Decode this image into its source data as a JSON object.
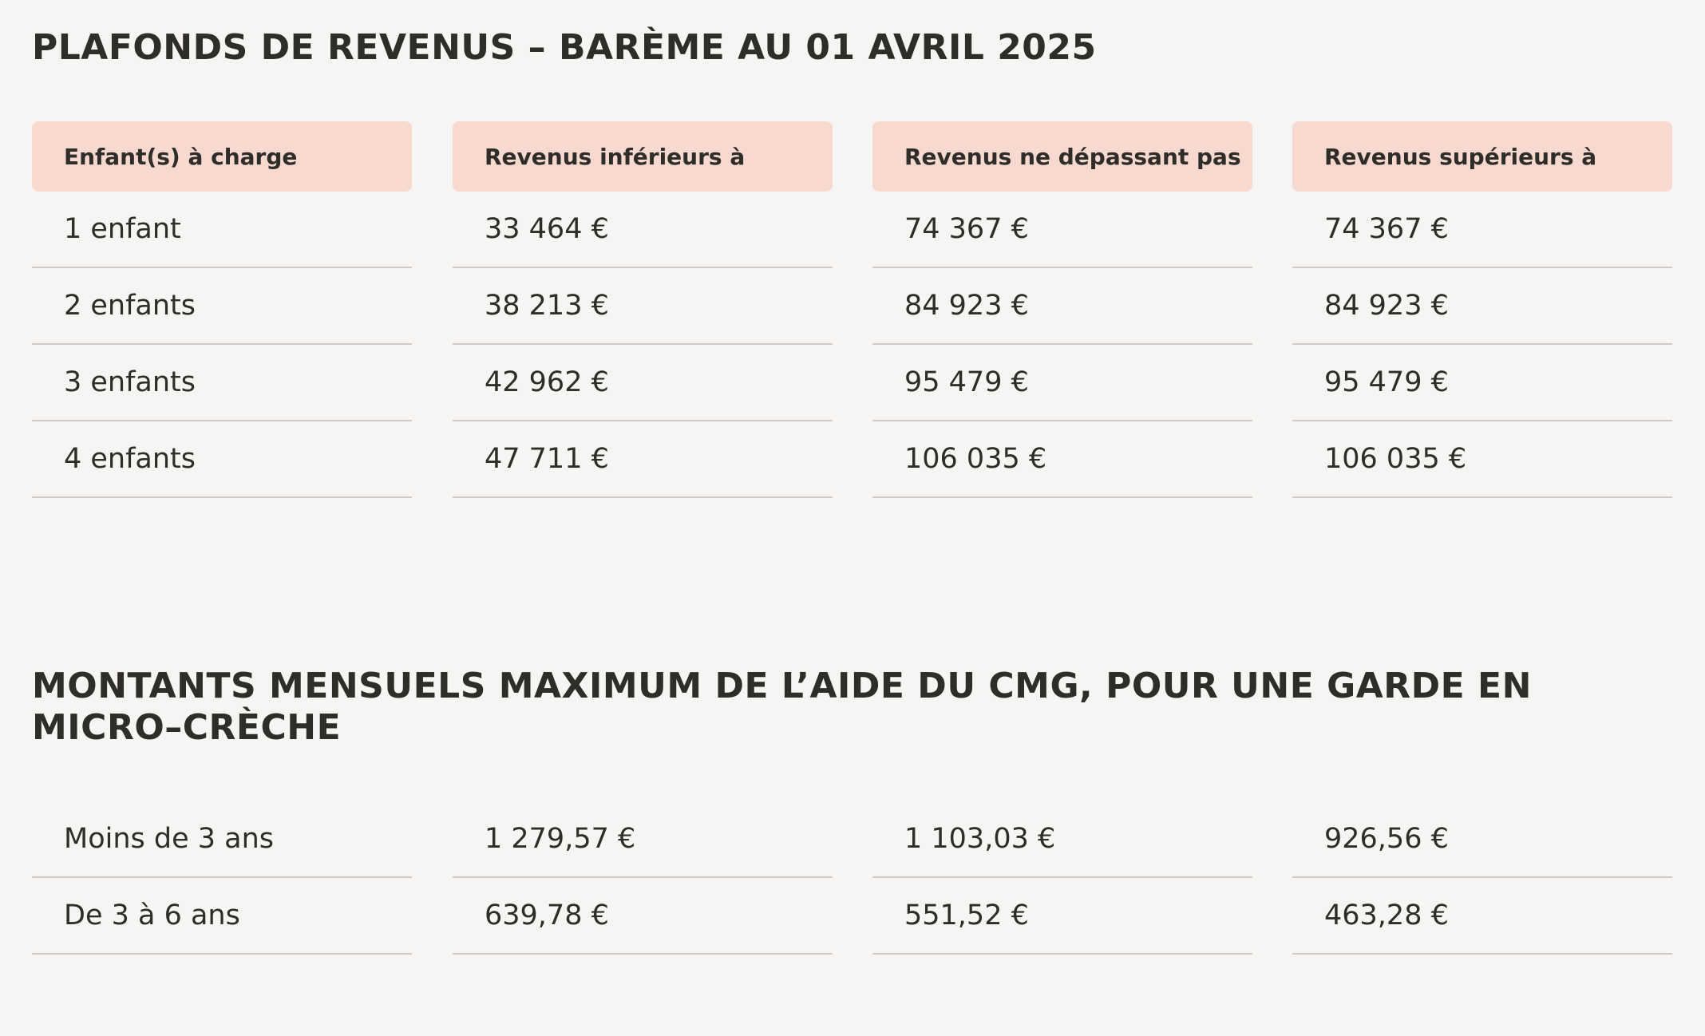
{
  "section1": {
    "title": "PLAFONDS DE REVENUS – BARÈME AU 01 AVRIL 2025",
    "headers": [
      "Enfant(s) à charge",
      "Revenus inférieurs à",
      "Revenus ne dépassant pas",
      "Revenus supérieurs à"
    ],
    "rows": [
      [
        "1 enfant",
        "33 464 €",
        "74 367 €",
        "74 367 €"
      ],
      [
        "2 enfants",
        "38 213 €",
        "84 923 €",
        "84 923 €"
      ],
      [
        "3 enfants",
        "42 962 €",
        "95 479 €",
        "95 479 €"
      ],
      [
        "4 enfants",
        "47 711 €",
        "106 035 €",
        "106 035 €"
      ]
    ]
  },
  "section2": {
    "title": "MONTANTS MENSUELS MAXIMUM DE L’AIDE DU CMG, POUR UNE GARDE EN MICRO–CRÈCHE",
    "rows": [
      [
        "Moins de 3 ans",
        "1 279,57 €",
        "1 103,03 €",
        "926,56 €"
      ],
      [
        "De 3 à 6 ans",
        "639,78 €",
        "551,52 €",
        "463,28 €"
      ]
    ]
  },
  "colors": {
    "background": "#f6f5f3",
    "header_fill": "#f7d9cf",
    "text": "#2f2d29",
    "divider": "#cfccc8"
  }
}
